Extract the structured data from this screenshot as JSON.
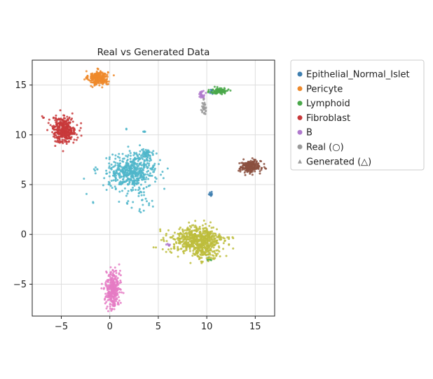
{
  "chart_data": {
    "type": "scatter",
    "title": "Real vs Generated Data",
    "xlabel": "",
    "ylabel": "",
    "xlim": [
      -8,
      17
    ],
    "ylim": [
      -8.2,
      17.5
    ],
    "xticks": [
      -5,
      0,
      5,
      10,
      15
    ],
    "yticks": [
      -5,
      0,
      5,
      10,
      15
    ],
    "grid": true,
    "legend_position": "outside-right",
    "series": [
      {
        "name": "Epithelial_Normal_Islet",
        "color": "#3f7fb0",
        "clusters": [
          {
            "cx": 10.4,
            "cy": 4.1,
            "sx": 0.1,
            "sy": 0.12,
            "n": 12
          },
          {
            "cx": 10.5,
            "cy": 14.3,
            "sx": 0.15,
            "sy": 0.15,
            "n": 10
          }
        ]
      },
      {
        "name": "Pericyte",
        "color": "#ee8a2c",
        "clusters": [
          {
            "cx": -1.2,
            "cy": 15.7,
            "sx": 0.5,
            "sy": 0.35,
            "n": 260
          }
        ]
      },
      {
        "name": "Lymphoid",
        "color": "#4aa84a",
        "clusters": [
          {
            "cx": 11.3,
            "cy": 14.4,
            "sx": 0.45,
            "sy": 0.15,
            "n": 110
          },
          {
            "cx": 10.3,
            "cy": -2.5,
            "sx": 0.15,
            "sy": 0.1,
            "n": 10
          }
        ]
      },
      {
        "name": "Fibroblast",
        "color": "#c8383a",
        "clusters": [
          {
            "cx": -4.7,
            "cy": 10.5,
            "sx": 0.6,
            "sy": 0.65,
            "n": 360
          },
          {
            "cx": -6.9,
            "cy": 11.8,
            "sx": 0.08,
            "sy": 0.08,
            "n": 3
          }
        ]
      },
      {
        "name": "B",
        "color": "#b07acd",
        "clusters": [
          {
            "cx": 9.5,
            "cy": 14.0,
            "sx": 0.18,
            "sy": 0.2,
            "n": 25
          },
          {
            "cx": 6.1,
            "cy": -1.0,
            "sx": 0.2,
            "sy": 0.08,
            "n": 8
          }
        ]
      },
      {
        "name": "Real (○)",
        "color": "#9b9b9b",
        "clusters": [
          {
            "cx": 9.7,
            "cy": 12.7,
            "sx": 0.12,
            "sy": 0.35,
            "n": 30
          }
        ]
      },
      {
        "name": "Generated (△)",
        "color": "#9b9b9b",
        "clusters": []
      },
      {
        "name": "",
        "color": "#8b5040",
        "clusters": [
          {
            "cx": 14.5,
            "cy": 6.8,
            "sx": 0.55,
            "sy": 0.3,
            "n": 230
          }
        ]
      },
      {
        "name": "",
        "color": "#4fb6ca",
        "clusters": [
          {
            "cx": 2.3,
            "cy": 6.3,
            "sx": 1.2,
            "sy": 0.8,
            "n": 480
          },
          {
            "cx": 3.7,
            "cy": 8.0,
            "sx": 0.45,
            "sy": 0.3,
            "n": 60
          },
          {
            "cx": 1.7,
            "cy": 10.6,
            "sx": 0.05,
            "sy": 0.05,
            "n": 2
          },
          {
            "cx": 3.5,
            "cy": 10.3,
            "sx": 0.1,
            "sy": 0.05,
            "n": 4
          },
          {
            "cx": 3.1,
            "cy": 3.6,
            "sx": 0.8,
            "sy": 0.7,
            "n": 30
          },
          {
            "cx": -1.5,
            "cy": 6.5,
            "sx": 0.2,
            "sy": 0.2,
            "n": 6
          },
          {
            "cx": -1.7,
            "cy": 3.2,
            "sx": 0.05,
            "sy": 0.05,
            "n": 2
          }
        ]
      },
      {
        "name": "",
        "color": "#bdbd3c",
        "clusters": [
          {
            "cx": 9.0,
            "cy": -0.6,
            "sx": 1.4,
            "sy": 0.7,
            "n": 600
          },
          {
            "cx": 10.0,
            "cy": -2.0,
            "sx": 0.6,
            "sy": 0.4,
            "n": 80
          }
        ]
      },
      {
        "name": "",
        "color": "#e57bc4",
        "clusters": [
          {
            "cx": 0.3,
            "cy": -5.5,
            "sx": 0.35,
            "sy": 0.9,
            "n": 330
          }
        ]
      }
    ]
  }
}
